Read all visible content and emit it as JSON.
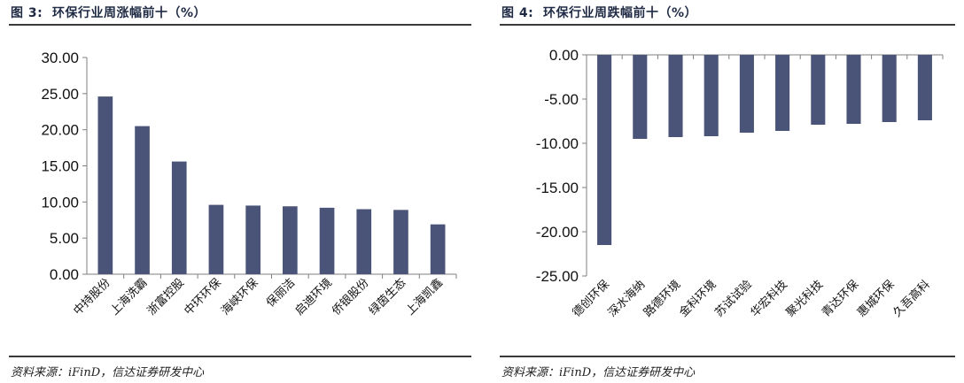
{
  "charts": [
    {
      "figure_label": "图 3:",
      "title": "环保行业周涨幅前十（%）",
      "source": "资料来源：iFinD，信达证券研发中心"
    },
    {
      "figure_label": "图 4:",
      "title": "环保行业周跌幅前十（%）",
      "source": "资料来源：iFinD，信达证券研发中心"
    }
  ],
  "colors": {
    "bar": "#4a5478",
    "axis": "#7f7f7f",
    "text": "#1f2a44"
  },
  "chart_data": [
    {
      "type": "bar",
      "title": "环保行业周涨幅前十（%）",
      "categories": [
        "中持股份",
        "上海洗霸",
        "浙富控股",
        "中环环保",
        "海峡环保",
        "保丽洁",
        "启迪环境",
        "侨银股份",
        "绿茵生态",
        "上海凯鑫"
      ],
      "values": [
        24.6,
        20.5,
        15.6,
        9.6,
        9.5,
        9.4,
        9.2,
        9.0,
        8.9,
        6.9
      ],
      "yticks": [
        "0.00",
        "5.00",
        "10.00",
        "15.00",
        "20.00",
        "25.00",
        "30.00"
      ],
      "ylim": [
        0,
        30
      ],
      "xlabel": "",
      "ylabel": "",
      "grid": false,
      "legend": false
    },
    {
      "type": "bar",
      "title": "环保行业周跌幅前十（%）",
      "categories": [
        "德创环保",
        "深水海纳",
        "路德环境",
        "金科环境",
        "苏试试验",
        "华宏科技",
        "聚光科技",
        "青达环保",
        "惠城环保",
        "久吾高科"
      ],
      "values": [
        -21.5,
        -9.5,
        -9.3,
        -9.2,
        -8.8,
        -8.6,
        -7.9,
        -7.8,
        -7.6,
        -7.4
      ],
      "yticks": [
        "-25.00",
        "-20.00",
        "-15.00",
        "-10.00",
        "-5.00",
        "0.00"
      ],
      "ylim": [
        -25,
        0
      ],
      "xlabel": "",
      "ylabel": "",
      "grid": false,
      "legend": false
    }
  ]
}
